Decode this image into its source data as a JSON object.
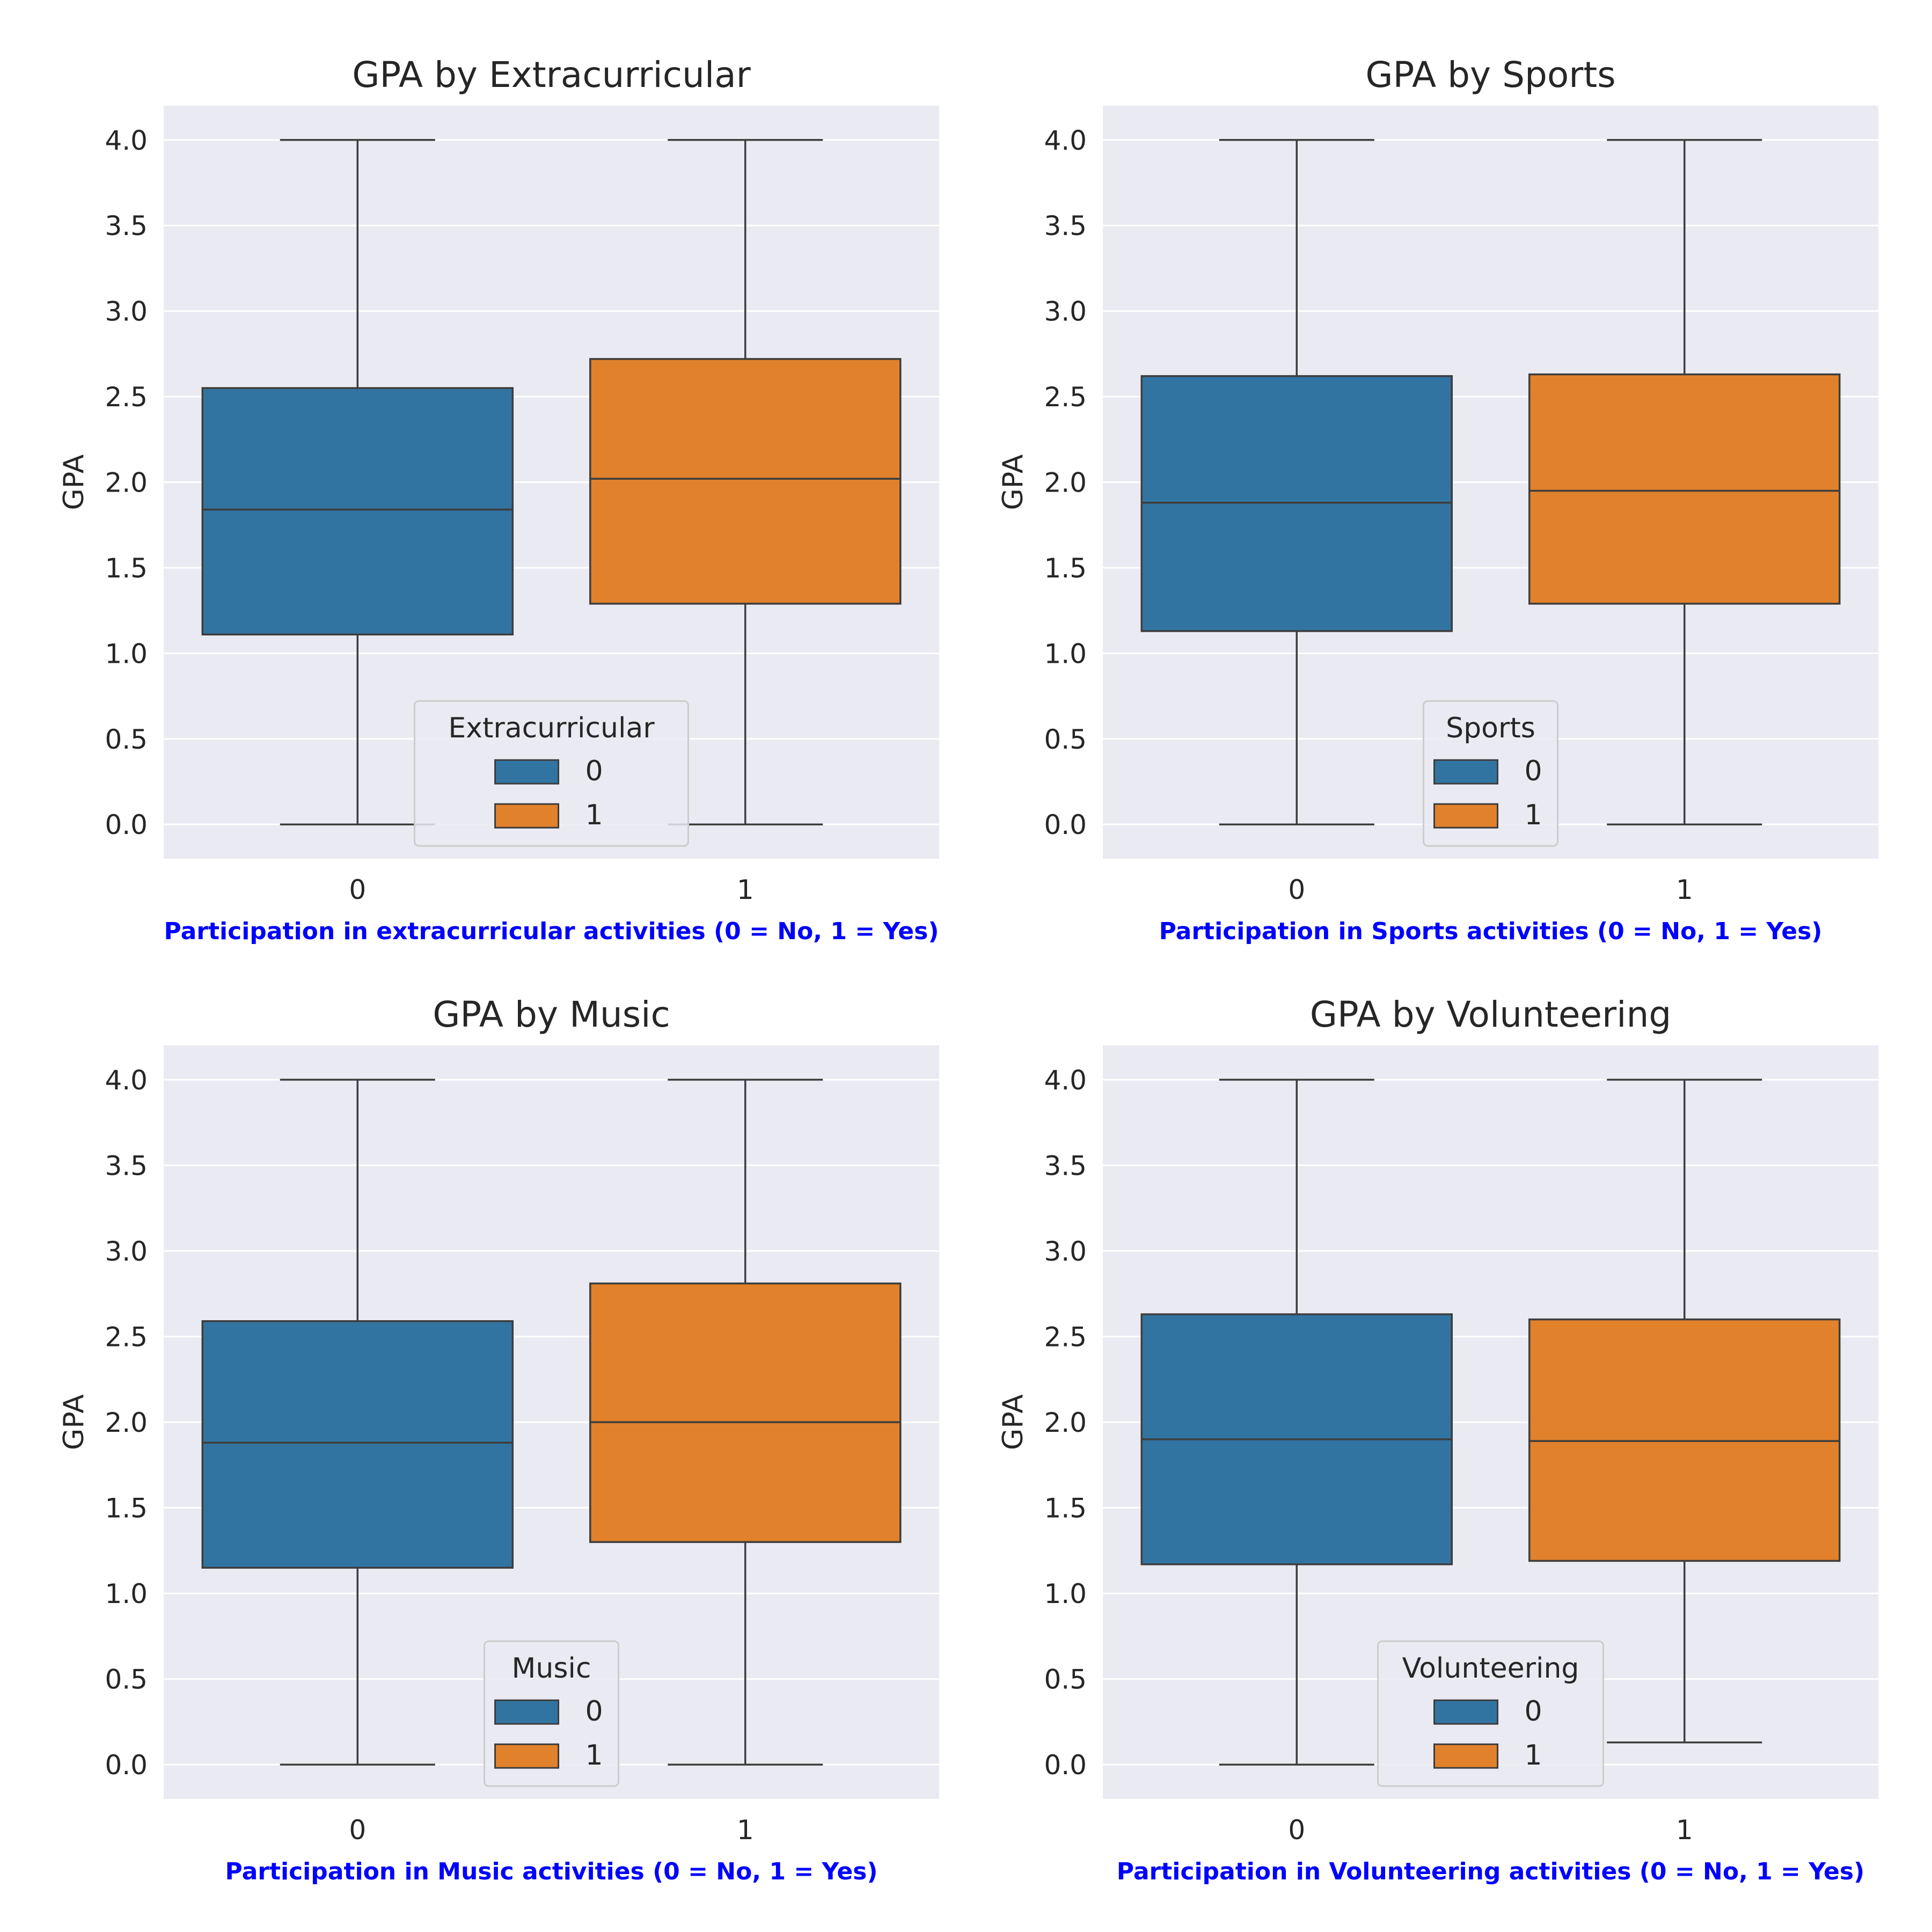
{
  "colors": {
    "background": "#eaeaf2",
    "grid": "#ffffff",
    "line": "#3d3d3d",
    "label_blue": "#0000ff"
  },
  "chart_data": [
    {
      "type": "box",
      "title": "GPA by Extracurricular",
      "xlabel": "Participation in extracurricular activities (0 = No, 1 = Yes)",
      "ylabel": "GPA",
      "ylim": [
        -0.2,
        4.2
      ],
      "yticks": [
        "0.0",
        "0.5",
        "1.0",
        "1.5",
        "2.0",
        "2.5",
        "3.0",
        "3.5",
        "4.0"
      ],
      "categories": [
        "0",
        "1"
      ],
      "legend": {
        "title": "Extracurricular",
        "entries": [
          "0",
          "1"
        ],
        "placement": "lower-center"
      },
      "boxes": [
        {
          "category": "0",
          "color": "#3274a1",
          "min": 0.0,
          "q1": 1.11,
          "median": 1.84,
          "q3": 2.55,
          "max": 4.0
        },
        {
          "category": "1",
          "color": "#e1812c",
          "min": 0.0,
          "q1": 1.29,
          "median": 2.02,
          "q3": 2.72,
          "max": 4.0
        }
      ]
    },
    {
      "type": "box",
      "title": "GPA by Sports",
      "xlabel": "Participation in Sports activities (0 = No, 1 = Yes)",
      "ylabel": "GPA",
      "ylim": [
        -0.2,
        4.2
      ],
      "yticks": [
        "0.0",
        "0.5",
        "1.0",
        "1.5",
        "2.0",
        "2.5",
        "3.0",
        "3.5",
        "4.0"
      ],
      "categories": [
        "0",
        "1"
      ],
      "legend": {
        "title": "Sports",
        "entries": [
          "0",
          "1"
        ],
        "placement": "lower-center"
      },
      "boxes": [
        {
          "category": "0",
          "color": "#3274a1",
          "min": 0.0,
          "q1": 1.13,
          "median": 1.88,
          "q3": 2.62,
          "max": 4.0
        },
        {
          "category": "1",
          "color": "#e1812c",
          "min": 0.0,
          "q1": 1.29,
          "median": 1.95,
          "q3": 2.63,
          "max": 4.0
        }
      ]
    },
    {
      "type": "box",
      "title": "GPA by Music",
      "xlabel": "Participation in Music activities (0 = No, 1 = Yes)",
      "ylabel": "GPA",
      "ylim": [
        -0.2,
        4.2
      ],
      "yticks": [
        "0.0",
        "0.5",
        "1.0",
        "1.5",
        "2.0",
        "2.5",
        "3.0",
        "3.5",
        "4.0"
      ],
      "categories": [
        "0",
        "1"
      ],
      "legend": {
        "title": "Music",
        "entries": [
          "0",
          "1"
        ],
        "placement": "lower-center"
      },
      "boxes": [
        {
          "category": "0",
          "color": "#3274a1",
          "min": 0.0,
          "q1": 1.15,
          "median": 1.88,
          "q3": 2.59,
          "max": 4.0
        },
        {
          "category": "1",
          "color": "#e1812c",
          "min": 0.0,
          "q1": 1.3,
          "median": 2.0,
          "q3": 2.81,
          "max": 4.0
        }
      ]
    },
    {
      "type": "box",
      "title": "GPA by Volunteering",
      "xlabel": "Participation in Volunteering activities (0 = No, 1 = Yes)",
      "ylabel": "GPA",
      "ylim": [
        -0.2,
        4.2
      ],
      "yticks": [
        "0.0",
        "0.5",
        "1.0",
        "1.5",
        "2.0",
        "2.5",
        "3.0",
        "3.5",
        "4.0"
      ],
      "categories": [
        "0",
        "1"
      ],
      "legend": {
        "title": "Volunteering",
        "entries": [
          "0",
          "1"
        ],
        "placement": "lower-center"
      },
      "boxes": [
        {
          "category": "0",
          "color": "#3274a1",
          "min": 0.0,
          "q1": 1.17,
          "median": 1.9,
          "q3": 2.63,
          "max": 4.0
        },
        {
          "category": "1",
          "color": "#e1812c",
          "min": 0.13,
          "q1": 1.19,
          "median": 1.89,
          "q3": 2.6,
          "max": 4.0
        }
      ]
    }
  ]
}
